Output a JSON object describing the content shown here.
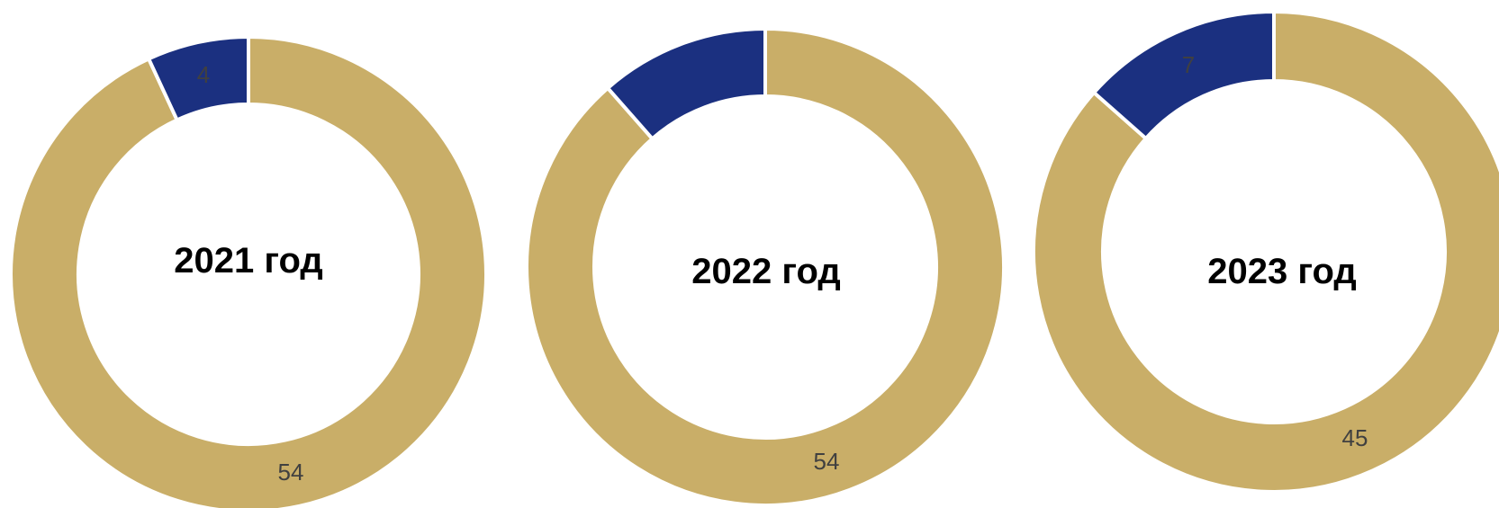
{
  "colors": {
    "primary": "#c9ae68",
    "secondary": "#1b3080",
    "separator": "#ffffff",
    "label": "#404040"
  },
  "chart_data": [
    {
      "type": "pie",
      "variant": "donut",
      "center_label": "2021 год",
      "slices": [
        {
          "value": 54,
          "label": "54",
          "color": "#c9ae68"
        },
        {
          "value": 4,
          "label": "4",
          "color": "#1b3080"
        }
      ]
    },
    {
      "type": "pie",
      "variant": "donut",
      "center_label": "2022 год",
      "slices": [
        {
          "value": 54,
          "label": "54",
          "color": "#c9ae68"
        },
        {
          "value": 7,
          "label": "",
          "color": "#1b3080"
        }
      ]
    },
    {
      "type": "pie",
      "variant": "donut",
      "center_label": "2023 год",
      "slices": [
        {
          "value": 45,
          "label": "45",
          "color": "#c9ae68"
        },
        {
          "value": 7,
          "label": "7",
          "color": "#1b3080"
        }
      ]
    }
  ]
}
